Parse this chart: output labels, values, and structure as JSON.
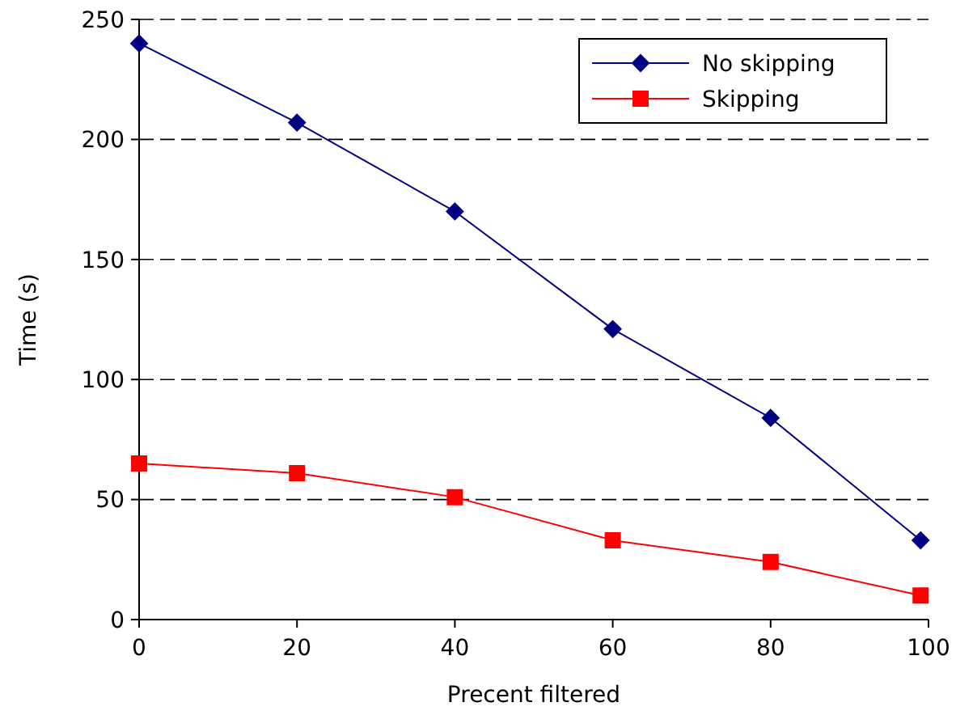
{
  "chart_data": {
    "type": "line",
    "xlabel": "Precent filtered",
    "ylabel": "Time (s)",
    "x": [
      0,
      20,
      40,
      60,
      80,
      99
    ],
    "series": [
      {
        "name": "No skipping",
        "color": "#000080",
        "marker": "diamond",
        "values": [
          240,
          207,
          170,
          121,
          84,
          33
        ]
      },
      {
        "name": "Skipping",
        "color": "#ff0000",
        "marker": "square",
        "values": [
          65,
          61,
          51,
          33,
          24,
          10
        ]
      }
    ],
    "xlim": [
      0,
      100
    ],
    "xticks": [
      0,
      20,
      40,
      60,
      80,
      100
    ],
    "ylim": [
      0,
      250
    ],
    "yticks": [
      0,
      50,
      100,
      150,
      200,
      250
    ],
    "grid": "y",
    "legend": "top right",
    "line_style": "solid"
  }
}
